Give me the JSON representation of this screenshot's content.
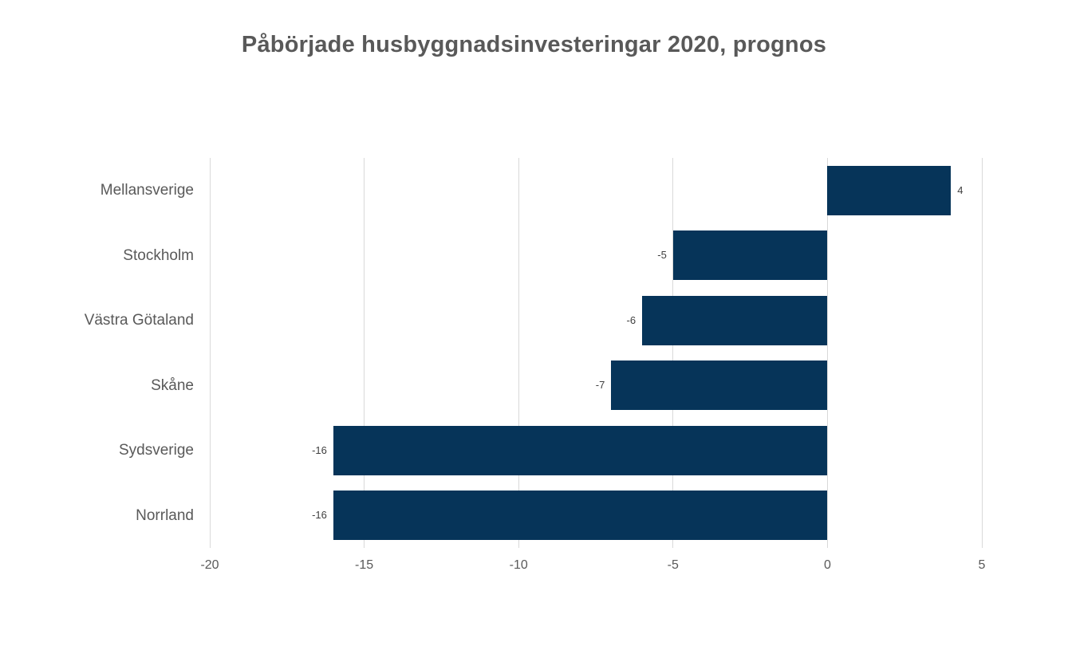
{
  "chart_data": {
    "type": "bar",
    "orientation": "horizontal",
    "title": "Påbörjade husbyggnadsinvesteringar 2020, prognos",
    "categories": [
      "Mellansverige",
      "Stockholm",
      "Västra Götaland",
      "Skåne",
      "Sydsverige",
      "Norrland"
    ],
    "values": [
      4,
      -5,
      -6,
      -7,
      -16,
      -16
    ],
    "data_labels": [
      "4",
      "-5",
      "-6",
      "-7",
      "-16",
      "-16"
    ],
    "x_ticks": [
      -20,
      -15,
      -10,
      -5,
      0,
      5
    ],
    "x_tick_labels": [
      "-20",
      "-15",
      "-10",
      "-5",
      "0",
      "5"
    ],
    "xlim": [
      -20,
      5
    ],
    "xlabel": "",
    "ylabel": "",
    "grid": "vertical-only",
    "legend": "none",
    "colors": {
      "bar": "#063459",
      "gridline": "#d9d9d9",
      "title": "#595959",
      "axis_labels": "#595959",
      "data_labels": "#404040",
      "background": "#ffffff"
    }
  }
}
